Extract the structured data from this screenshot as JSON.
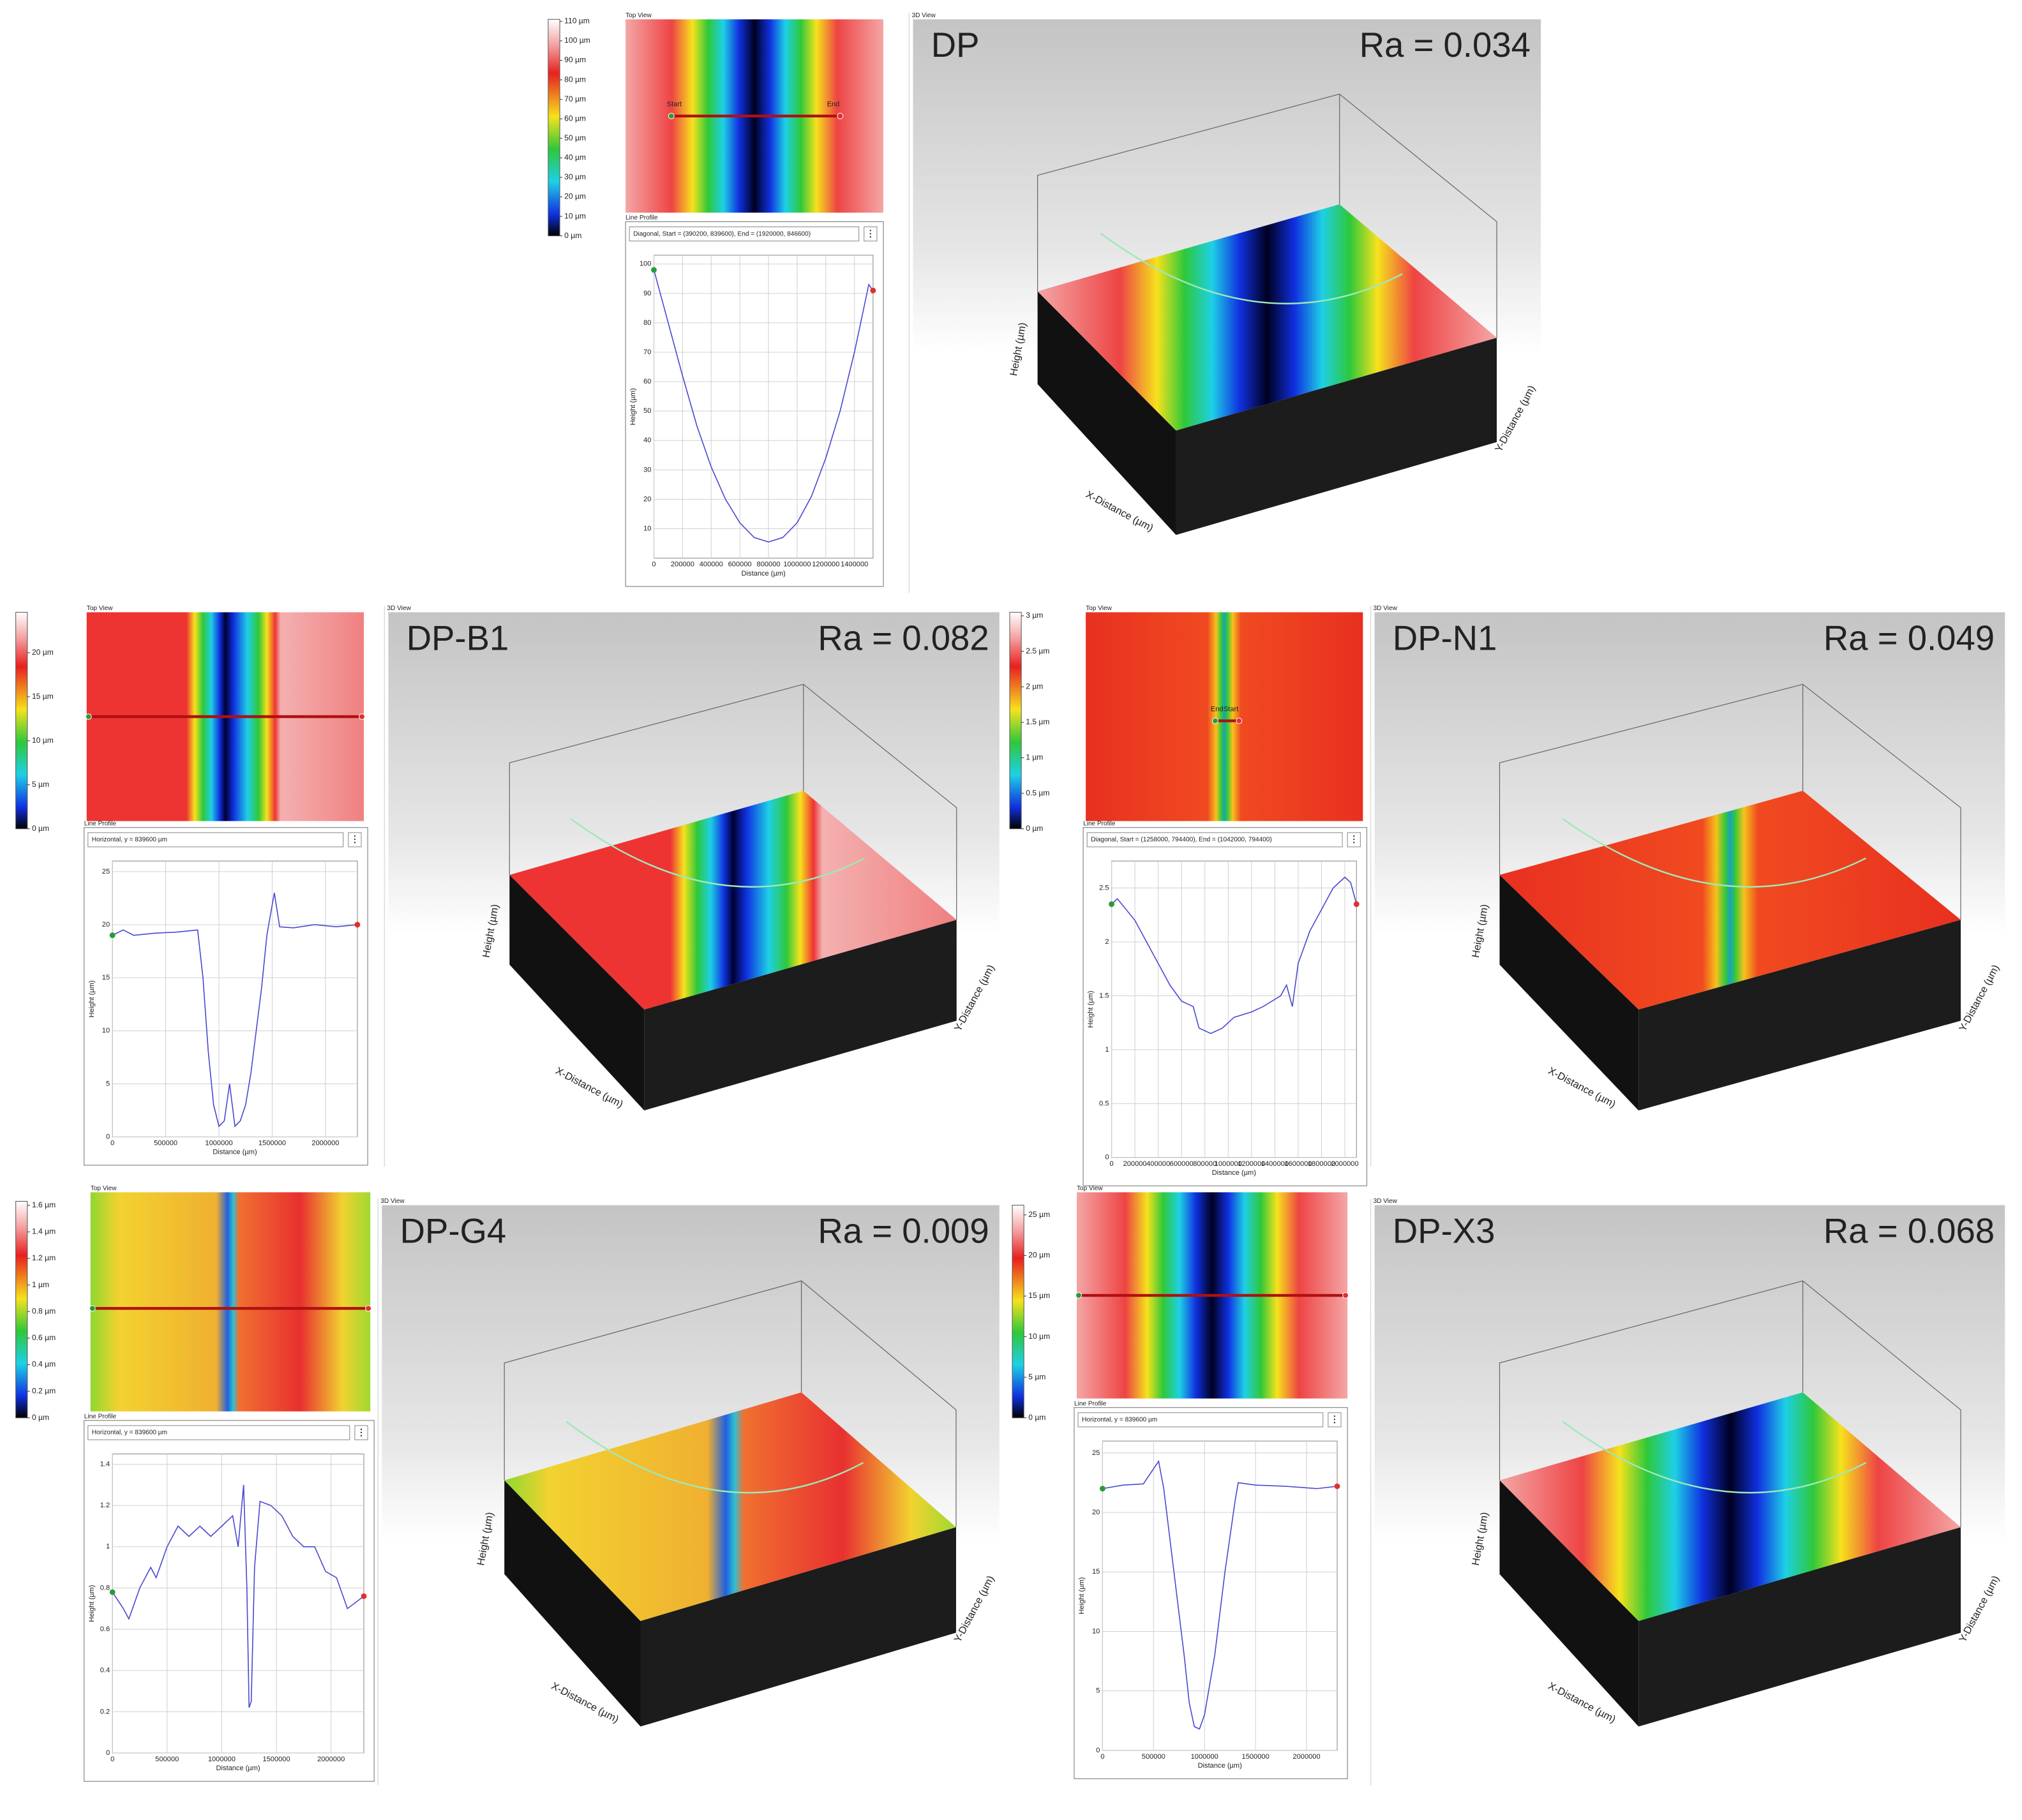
{
  "panels": [
    {
      "sample": "DP",
      "ra": "Ra = 0.034",
      "top_view": "Top View",
      "line_profile": "Line Profile",
      "view_3d": "3D View",
      "profile_info": "Diagonal, Start = (390200, 839600), End = (1920000, 846600)",
      "markers": [
        "Start",
        "End"
      ],
      "colorbar": {
        "lim": [
          0,
          111
        ],
        "ticks": [
          {
            "value": 110,
            "label": "110 µm"
          },
          {
            "value": 100,
            "label": "100 µm"
          },
          {
            "value": 90,
            "label": "90 µm"
          },
          {
            "value": 80,
            "label": "80 µm"
          },
          {
            "value": 70,
            "label": "70 µm"
          },
          {
            "value": 60,
            "label": "60 µm"
          },
          {
            "value": 50,
            "label": "50 µm"
          },
          {
            "value": 40,
            "label": "40 µm"
          },
          {
            "value": 30,
            "label": "30 µm"
          },
          {
            "value": 20,
            "label": "20 µm"
          },
          {
            "value": 10,
            "label": "10 µm"
          },
          {
            "value": 0,
            "label": "0 µm"
          }
        ]
      },
      "axes_3d": {
        "height": "Height (µm)",
        "x": "X-Distance (µm)",
        "y": "Y-Distance (µm)"
      },
      "chart": {
        "type": "line",
        "x_label": "Distance (µm)",
        "y_label": "Height (µm)",
        "color": "#4a4ad0",
        "x": [
          0,
          100000,
          200000,
          300000,
          400000,
          500000,
          600000,
          700000,
          800000,
          900000,
          1000000,
          1100000,
          1200000,
          1300000,
          1400000,
          1500000,
          1530000
        ],
        "values": [
          98,
          80,
          62,
          45,
          31,
          20,
          12,
          7,
          5.5,
          7,
          12,
          21,
          34,
          50,
          70,
          93,
          91
        ],
        "xlim": [
          0,
          1530000
        ],
        "ylim": [
          0,
          103
        ],
        "xticks": [
          0,
          200000,
          400000,
          600000,
          800000,
          1000000,
          1200000,
          1400000
        ],
        "yticks": [
          10,
          20,
          30,
          40,
          50,
          60,
          70,
          80,
          90,
          100
        ]
      }
    },
    {
      "sample": "DP-B1",
      "ra": "Ra = 0.082",
      "top_view": "Top View",
      "line_profile": "Line Profile",
      "view_3d": "3D View",
      "profile_info": "Horizontal, y = 839600 µm",
      "colorbar": {
        "lim": [
          0,
          24.6
        ],
        "ticks": [
          {
            "value": 20,
            "label": "20 µm"
          },
          {
            "value": 15,
            "label": "15 µm"
          },
          {
            "value": 10,
            "label": "10 µm"
          },
          {
            "value": 5,
            "label": "5 µm"
          },
          {
            "value": 0,
            "label": "0 µm"
          }
        ]
      },
      "axes_3d": {
        "height": "Height (µm)",
        "x": "X-Distance (µm)",
        "y": "Y-Distance (µm)"
      },
      "chart": {
        "type": "line",
        "x_label": "Distance (µm)",
        "y_label": "Height (µm)",
        "color": "#4a4ad0",
        "x": [
          0,
          100000,
          200000,
          400000,
          600000,
          800000,
          850000,
          900000,
          950000,
          1000000,
          1050000,
          1100000,
          1150000,
          1200000,
          1250000,
          1300000,
          1400000,
          1450000,
          1520000,
          1570000,
          1700000,
          1900000,
          2100000,
          2300000
        ],
        "values": [
          19,
          19.5,
          19,
          19.2,
          19.3,
          19.5,
          15,
          8,
          3,
          1,
          1.5,
          5,
          1,
          1.5,
          3,
          6,
          14,
          19,
          23,
          19.8,
          19.7,
          20,
          19.8,
          20
        ],
        "xlim": [
          0,
          2300000
        ],
        "ylim": [
          0,
          26
        ],
        "xticks": [
          0,
          500000,
          1000000,
          1500000,
          2000000
        ],
        "yticks": [
          0,
          5,
          10,
          15,
          20,
          25
        ]
      }
    },
    {
      "sample": "DP-N1",
      "ra": "Ra = 0.049",
      "top_view": "Top View",
      "line_profile": "Line Profile",
      "view_3d": "3D View",
      "profile_info": "Diagonal, Start = (1258000, 794400), End = (1042000, 794400)",
      "markers": [
        "End",
        "Start"
      ],
      "colorbar": {
        "lim": [
          0,
          3.05
        ],
        "ticks": [
          {
            "value": 3,
            "label": "3 µm"
          },
          {
            "value": 2.5,
            "label": "2.5 µm"
          },
          {
            "value": 2,
            "label": "2 µm"
          },
          {
            "value": 1.5,
            "label": "1.5 µm"
          },
          {
            "value": 1,
            "label": "1 µm"
          },
          {
            "value": 0.5,
            "label": "0.5 µm"
          },
          {
            "value": 0,
            "label": "0 µm"
          }
        ]
      },
      "axes_3d": {
        "height": "Height (µm)",
        "x": "X-Distance (µm)",
        "y": "Y-Distance (µm)"
      },
      "chart": {
        "type": "line",
        "x_label": "Distance (µm)",
        "y_label": "Height (µm)",
        "color": "#4a4ad0",
        "x": [
          0,
          50000,
          200000,
          300000,
          400000,
          500000,
          600000,
          700000,
          750000,
          850000,
          950000,
          1050000,
          1200000,
          1300000,
          1450000,
          1500000,
          1550000,
          1600000,
          1700000,
          1800000,
          1900000,
          2000000,
          2050000,
          2100000
        ],
        "values": [
          2.35,
          2.4,
          2.2,
          2.0,
          1.8,
          1.6,
          1.45,
          1.4,
          1.2,
          1.15,
          1.2,
          1.3,
          1.35,
          1.4,
          1.5,
          1.6,
          1.4,
          1.8,
          2.1,
          2.3,
          2.5,
          2.6,
          2.55,
          2.35
        ],
        "xlim": [
          0,
          2100000
        ],
        "ylim": [
          0,
          2.75
        ],
        "xticks": [
          0,
          200000,
          400000,
          600000,
          800000,
          1000000,
          1200000,
          1400000,
          1600000,
          1800000,
          2000000
        ],
        "yticks": [
          0,
          0.5,
          1,
          1.5,
          2,
          2.5
        ]
      }
    },
    {
      "sample": "DP-G4",
      "ra": "Ra = 0.009",
      "top_view": "Top View",
      "line_profile": "Line Profile",
      "view_3d": "3D View",
      "profile_info": "Horizontal, y = 839600 µm",
      "colorbar": {
        "lim": [
          0,
          1.63
        ],
        "ticks": [
          {
            "value": 1.6,
            "label": "1.6 µm"
          },
          {
            "value": 1.4,
            "label": "1.4 µm"
          },
          {
            "value": 1.2,
            "label": "1.2 µm"
          },
          {
            "value": 1,
            "label": "1 µm"
          },
          {
            "value": 0.8,
            "label": "0.8 µm"
          },
          {
            "value": 0.6,
            "label": "0.6 µm"
          },
          {
            "value": 0.4,
            "label": "0.4 µm"
          },
          {
            "value": 0.2,
            "label": "0.2 µm"
          },
          {
            "value": 0,
            "label": "0 µm"
          }
        ]
      },
      "axes_3d": {
        "height": "Height (µm)",
        "x": "X-Distance (µm)",
        "y": "Y-Distance (µm)"
      },
      "chart": {
        "type": "line",
        "x_label": "Distance (µm)",
        "y_label": "Height (µm)",
        "color": "#4a4ad0",
        "x": [
          0,
          100000,
          150000,
          250000,
          350000,
          400000,
          500000,
          600000,
          700000,
          800000,
          900000,
          1000000,
          1100000,
          1150000,
          1200000,
          1230000,
          1250000,
          1270000,
          1300000,
          1350000,
          1450000,
          1550000,
          1650000,
          1750000,
          1850000,
          1950000,
          2050000,
          2150000,
          2300000
        ],
        "values": [
          0.78,
          0.7,
          0.65,
          0.8,
          0.9,
          0.85,
          1.0,
          1.1,
          1.05,
          1.1,
          1.05,
          1.1,
          1.15,
          1.0,
          1.3,
          0.8,
          0.22,
          0.25,
          0.9,
          1.22,
          1.2,
          1.15,
          1.05,
          1.0,
          1.0,
          0.88,
          0.85,
          0.7,
          0.76
        ],
        "xlim": [
          0,
          2300000
        ],
        "ylim": [
          0,
          1.45
        ],
        "xticks": [
          0,
          500000,
          1000000,
          1500000,
          2000000
        ],
        "yticks": [
          0,
          0.2,
          0.4,
          0.6,
          0.8,
          1,
          1.2,
          1.4
        ]
      }
    },
    {
      "sample": "DP-X3",
      "ra": "Ra = 0.068",
      "top_view": "Top View",
      "line_profile": "Line Profile",
      "view_3d": "3D View",
      "profile_info": "Horizontal, y = 839600 µm",
      "colorbar": {
        "lim": [
          0,
          26.2
        ],
        "ticks": [
          {
            "value": 25,
            "label": "25 µm"
          },
          {
            "value": 20,
            "label": "20 µm"
          },
          {
            "value": 15,
            "label": "15 µm"
          },
          {
            "value": 10,
            "label": "10 µm"
          },
          {
            "value": 5,
            "label": "5 µm"
          },
          {
            "value": 0,
            "label": "0 µm"
          }
        ]
      },
      "axes_3d": {
        "height": "Height (µm)",
        "x": "X-Distance (µm)",
        "y": "Y-Distance (µm)"
      },
      "chart": {
        "type": "line",
        "x_label": "Distance (µm)",
        "y_label": "Height (µm)",
        "color": "#4a4ad0",
        "x": [
          0,
          200000,
          400000,
          550000,
          600000,
          700000,
          800000,
          850000,
          900000,
          950000,
          1000000,
          1100000,
          1200000,
          1300000,
          1330000,
          1500000,
          1800000,
          2100000,
          2300000
        ],
        "values": [
          22,
          22.3,
          22.4,
          24.3,
          22,
          15,
          8,
          4,
          2,
          1.8,
          3,
          8,
          15,
          21,
          22.5,
          22.3,
          22.2,
          22,
          22.2
        ],
        "xlim": [
          0,
          2300000
        ],
        "ylim": [
          0,
          26
        ],
        "xticks": [
          0,
          500000,
          1000000,
          1500000,
          2000000
        ],
        "yticks": [
          0,
          5,
          10,
          15,
          20,
          25
        ]
      }
    }
  ]
}
